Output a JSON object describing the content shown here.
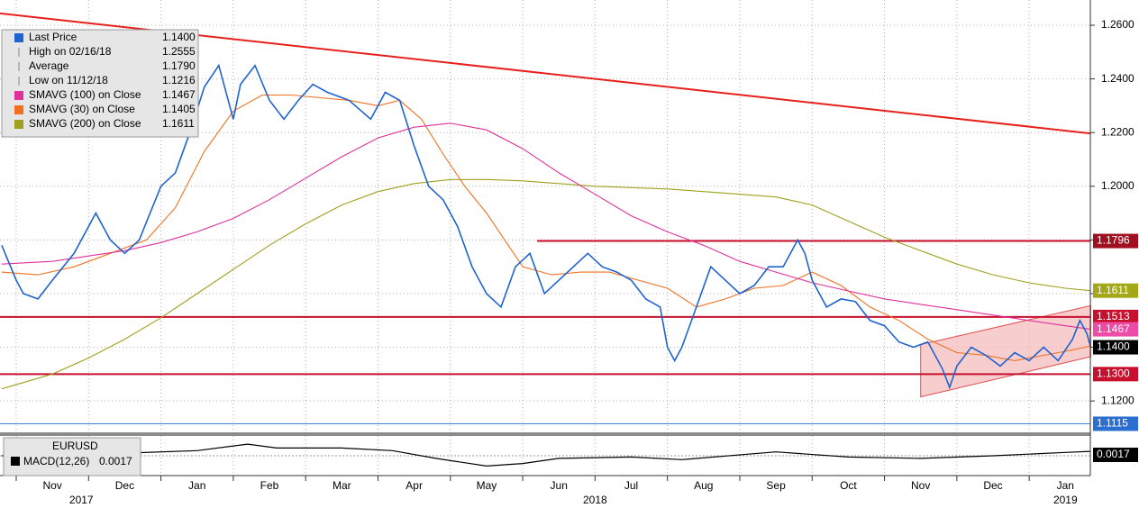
{
  "chart_data": {
    "type": "line",
    "xlim": [
      -0.224,
      14.845
    ],
    "ylim": [
      1.1083,
      1.2694
    ],
    "grid": true,
    "xticks": [
      {
        "value": 0.5,
        "label": "Nov"
      },
      {
        "value": 1.5,
        "label": "Dec"
      },
      {
        "value": 2.5,
        "label": "Jan"
      },
      {
        "value": 3.5,
        "label": "Feb"
      },
      {
        "value": 4.5,
        "label": "Mar"
      },
      {
        "value": 5.5,
        "label": "Apr"
      },
      {
        "value": 6.5,
        "label": "May"
      },
      {
        "value": 7.5,
        "label": "Jun"
      },
      {
        "value": 8.5,
        "label": "Jul"
      },
      {
        "value": 9.5,
        "label": "Aug"
      },
      {
        "value": 10.5,
        "label": "Sep"
      },
      {
        "value": 11.5,
        "label": "Oct"
      },
      {
        "value": 12.5,
        "label": "Nov"
      },
      {
        "value": 13.5,
        "label": "Dec"
      },
      {
        "value": 14.5,
        "label": "Jan"
      }
    ],
    "year_ticks": [
      {
        "value": 0.9,
        "label": "2017"
      },
      {
        "value": 8.0,
        "label": "2018"
      },
      {
        "value": 14.5,
        "label": "2019"
      }
    ],
    "yticks": [
      {
        "value": 1.26,
        "label": "1.2600"
      },
      {
        "value": 1.24,
        "label": "1.2400"
      },
      {
        "value": 1.22,
        "label": "1.2200"
      },
      {
        "value": 1.2,
        "label": "1.2000"
      },
      {
        "value": 1.18,
        "label": "1.1800"
      },
      {
        "value": 1.16,
        "label": "1.1600"
      },
      {
        "value": 1.14,
        "label": "1.1400"
      },
      {
        "value": 1.12,
        "label": "1.1200"
      }
    ],
    "series": [
      {
        "name": "Last Price",
        "color": "#1f63d1",
        "last": {
          "value": 1.14,
          "label": "1.1400"
        },
        "tag_color": "#000000",
        "x": [
          -0.2,
          0,
          0.1,
          0.3,
          0.5,
          0.8,
          1.0,
          1.1,
          1.3,
          1.5,
          1.7,
          2.0,
          2.2,
          2.4,
          2.6,
          2.8,
          3.0,
          3.1,
          3.3,
          3.5,
          3.7,
          3.9,
          4.1,
          4.3,
          4.6,
          4.9,
          5.1,
          5.3,
          5.5,
          5.7,
          5.9,
          6.1,
          6.3,
          6.5,
          6.7,
          6.9,
          7.1,
          7.3,
          7.5,
          7.7,
          7.9,
          8.1,
          8.3,
          8.5,
          8.7,
          8.9,
          9.0,
          9.1,
          9.2,
          9.4,
          9.6,
          9.8,
          10.0,
          10.2,
          10.4,
          10.6,
          10.8,
          10.9,
          11.0,
          11.2,
          11.4,
          11.6,
          11.8,
          12.0,
          12.2,
          12.4,
          12.6,
          12.8,
          12.9,
          13.0,
          13.2,
          13.4,
          13.6,
          13.8,
          14.0,
          14.2,
          14.4,
          14.6,
          14.7,
          14.8,
          14.85
        ],
        "values": [
          1.178,
          1.165,
          1.16,
          1.158,
          1.165,
          1.175,
          1.185,
          1.19,
          1.18,
          1.175,
          1.18,
          1.2,
          1.205,
          1.22,
          1.237,
          1.245,
          1.225,
          1.238,
          1.245,
          1.232,
          1.225,
          1.232,
          1.238,
          1.235,
          1.232,
          1.225,
          1.235,
          1.232,
          1.215,
          1.2,
          1.195,
          1.185,
          1.17,
          1.16,
          1.155,
          1.17,
          1.175,
          1.16,
          1.165,
          1.17,
          1.175,
          1.17,
          1.168,
          1.165,
          1.158,
          1.155,
          1.14,
          1.135,
          1.14,
          1.155,
          1.17,
          1.165,
          1.16,
          1.163,
          1.17,
          1.17,
          1.18,
          1.175,
          1.165,
          1.155,
          1.158,
          1.157,
          1.15,
          1.148,
          1.142,
          1.14,
          1.142,
          1.132,
          1.125,
          1.133,
          1.14,
          1.137,
          1.133,
          1.138,
          1.135,
          1.14,
          1.135,
          1.143,
          1.15,
          1.145,
          1.14
        ]
      },
      {
        "name": "SMAVG (100)  on Close",
        "color": "#e0309a",
        "last": {
          "value": 1.1467,
          "label": "1.1467"
        },
        "tag_color": "#ee4aa8",
        "x": [
          -0.2,
          0.5,
          1.0,
          1.5,
          2.0,
          2.5,
          3.0,
          3.5,
          4.0,
          4.5,
          5.0,
          5.5,
          6.0,
          6.5,
          7.0,
          7.5,
          8.0,
          8.5,
          9.0,
          9.5,
          10.0,
          10.5,
          11.0,
          11.5,
          12.0,
          12.5,
          13.0,
          13.5,
          14.0,
          14.5,
          14.85
        ],
        "values": [
          1.171,
          1.172,
          1.174,
          1.176,
          1.179,
          1.183,
          1.188,
          1.195,
          1.203,
          1.211,
          1.218,
          1.222,
          1.2235,
          1.221,
          1.214,
          1.205,
          1.197,
          1.189,
          1.183,
          1.178,
          1.172,
          1.168,
          1.164,
          1.161,
          1.158,
          1.156,
          1.154,
          1.152,
          1.15,
          1.148,
          1.1467
        ]
      },
      {
        "name": "SMAVG (30)  on Close",
        "color": "#f07020",
        "last": {
          "value": 1.1405,
          "label": "1.1405"
        },
        "x": [
          -0.2,
          0.3,
          0.8,
          1.3,
          1.8,
          2.2,
          2.6,
          3.0,
          3.4,
          3.8,
          4.2,
          4.6,
          5.0,
          5.3,
          5.6,
          5.9,
          6.2,
          6.5,
          6.8,
          7.0,
          7.4,
          7.8,
          8.2,
          8.6,
          9.0,
          9.4,
          9.8,
          10.2,
          10.6,
          11.0,
          11.4,
          11.8,
          12.2,
          12.6,
          13.0,
          13.4,
          13.8,
          14.2,
          14.6,
          14.85
        ],
        "values": [
          1.168,
          1.167,
          1.17,
          1.175,
          1.18,
          1.192,
          1.213,
          1.228,
          1.234,
          1.234,
          1.233,
          1.232,
          1.23,
          1.232,
          1.225,
          1.212,
          1.2,
          1.19,
          1.178,
          1.17,
          1.167,
          1.168,
          1.168,
          1.165,
          1.162,
          1.155,
          1.158,
          1.162,
          1.163,
          1.168,
          1.163,
          1.155,
          1.15,
          1.143,
          1.138,
          1.137,
          1.135,
          1.137,
          1.139,
          1.1405
        ]
      },
      {
        "name": "SMAVG (200)  on Close",
        "color": "#a0a020",
        "last": {
          "value": 1.1611,
          "label": "1.1611"
        },
        "tag_color": "#a4a818",
        "x": [
          -0.2,
          0.5,
          1.0,
          1.5,
          2.0,
          2.5,
          3.0,
          3.5,
          4.0,
          4.5,
          5.0,
          5.5,
          6.0,
          6.5,
          7.0,
          7.5,
          8.0,
          8.5,
          9.0,
          9.5,
          10.0,
          10.5,
          11.0,
          11.5,
          12.0,
          12.5,
          13.0,
          13.5,
          14.0,
          14.5,
          14.85
        ],
        "values": [
          1.1245,
          1.13,
          1.136,
          1.143,
          1.151,
          1.16,
          1.169,
          1.178,
          1.186,
          1.193,
          1.198,
          1.201,
          1.2025,
          1.2025,
          1.202,
          1.201,
          1.2,
          1.1995,
          1.199,
          1.198,
          1.197,
          1.196,
          1.193,
          1.187,
          1.181,
          1.176,
          1.171,
          1.167,
          1.164,
          1.162,
          1.1611
        ]
      }
    ],
    "stats": [
      {
        "name": "High on 02/16/18",
        "value": 1.2555,
        "label": "1.2555"
      },
      {
        "name": "Average",
        "value": 1.179,
        "label": "1.1790"
      },
      {
        "name": "Low on 11/12/18",
        "value": 1.1216,
        "label": "1.1216"
      }
    ],
    "levels": [
      {
        "value": 1.1796,
        "label": "1.1796",
        "color": "#c8102e",
        "tag_color": "#a01020",
        "x": 7.2
      },
      {
        "value": 1.1513,
        "label": "1.1513",
        "color": "#c8102e",
        "tag_color": "#c8102e"
      },
      {
        "value": 1.13,
        "label": "1.1300",
        "color": "#c8102e",
        "tag_color": "#c8102e"
      },
      {
        "value": 1.1115,
        "label": "1.1115",
        "color": "#3b7fd9",
        "tag_color": "#2a6fd0"
      }
    ],
    "trendline": {
      "color": "#e8201c",
      "x": [
        -0.224,
        14.845
      ],
      "values": [
        1.2644,
        1.2197
      ]
    },
    "channel": {
      "color": "#f4b8b8",
      "x": [
        12.5,
        14.85
      ],
      "lower": [
        1.1215,
        1.1365
      ],
      "upper": [
        1.141,
        1.1555
      ]
    },
    "macd": {
      "title": "EURUSD",
      "name": "MACD(12,26)",
      "color": "#000000",
      "ylim": [
        -0.007,
        0.007
      ],
      "last": {
        "value": 0.0017,
        "label": "0.0017"
      },
      "x": [
        -0.2,
        0.5,
        1.5,
        2.5,
        3.2,
        3.6,
        4.5,
        5.2,
        5.8,
        6.5,
        7.0,
        7.5,
        8.5,
        9.2,
        10.5,
        11.5,
        12.5,
        13.5,
        14.5,
        14.85
      ],
      "values": [
        0.0,
        0.0005,
        0.001,
        0.002,
        0.0045,
        0.003,
        0.003,
        0.002,
        -0.001,
        -0.004,
        -0.003,
        -0.001,
        -0.0005,
        -0.0015,
        0.0015,
        -0.0005,
        -0.001,
        0.0,
        0.0013,
        0.0017
      ]
    }
  }
}
